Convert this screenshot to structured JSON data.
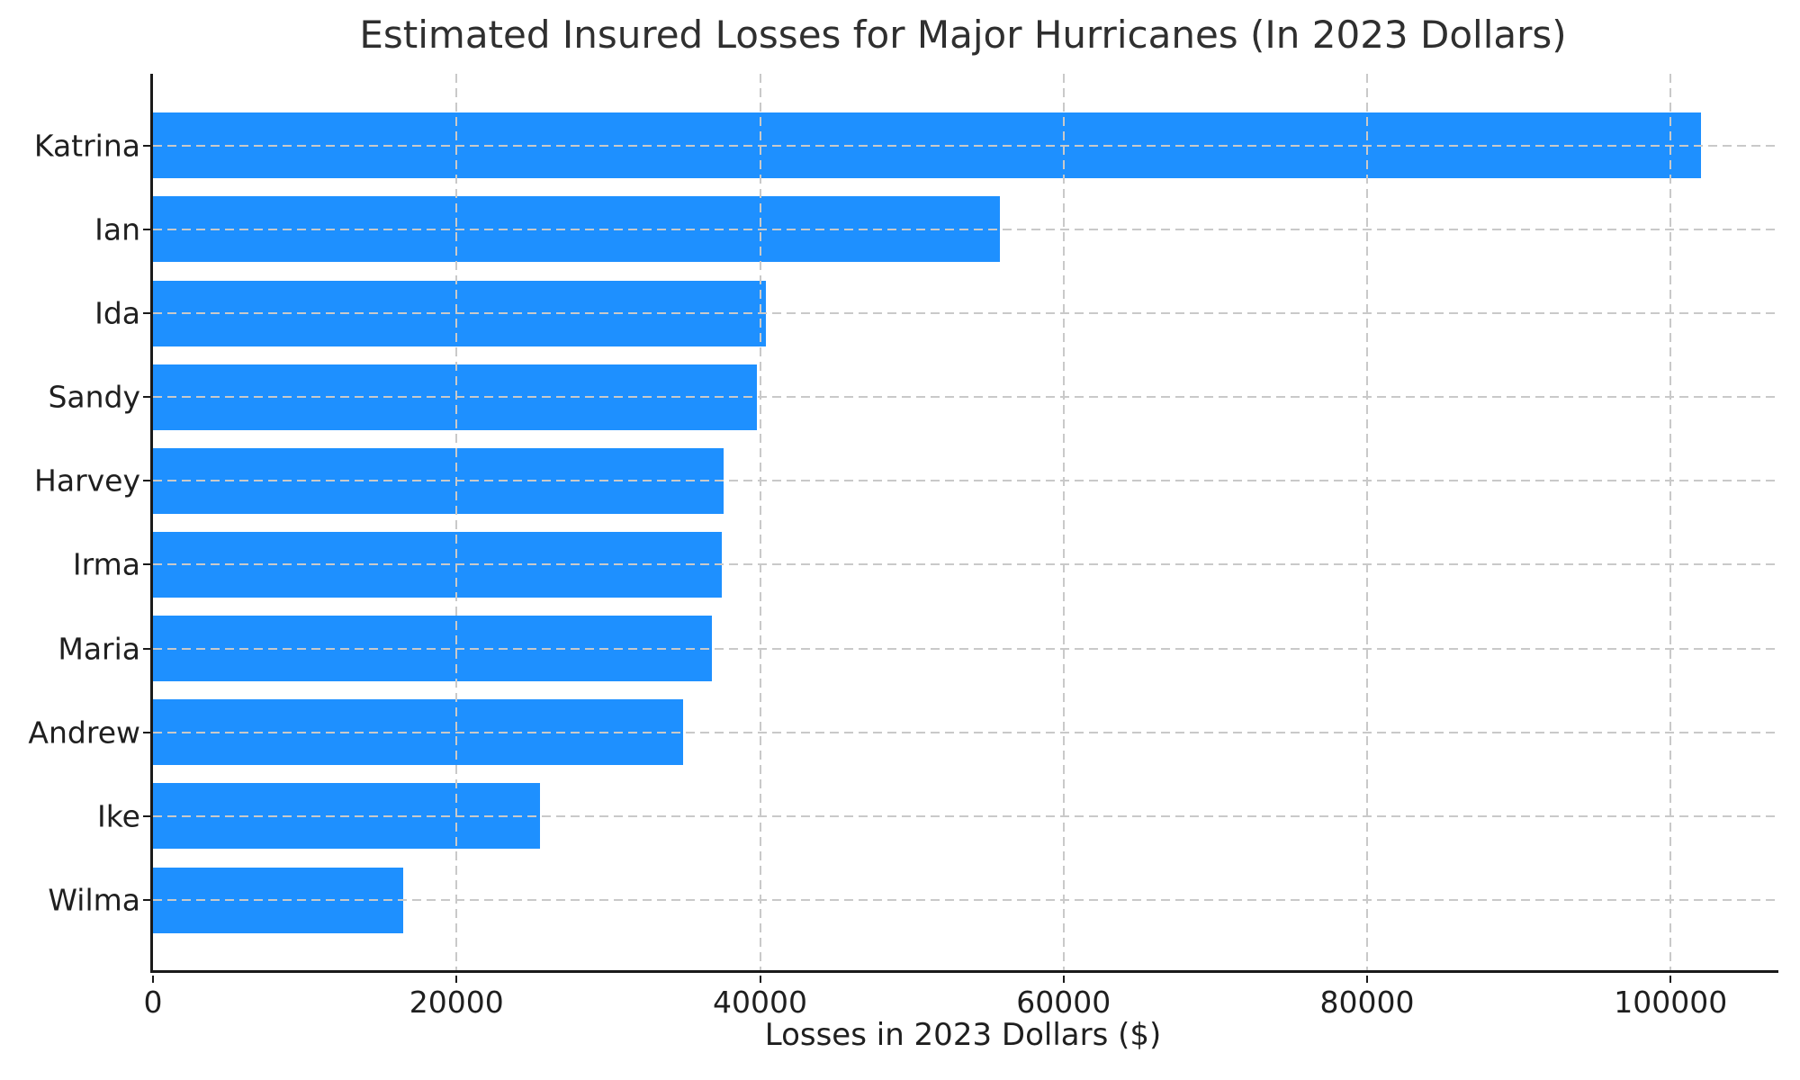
{
  "chart_data": {
    "type": "bar",
    "orientation": "horizontal",
    "title": "Estimated Insured Losses for Major Hurricanes (In 2023 Dollars)",
    "xlabel": "Losses in 2023 Dollars ($)",
    "categories": [
      "Katrina",
      "Ian",
      "Ida",
      "Sandy",
      "Harvey",
      "Irma",
      "Maria",
      "Andrew",
      "Ike",
      "Wilma"
    ],
    "values": [
      102000,
      55800,
      40400,
      39800,
      37600,
      37500,
      36800,
      34900,
      25500,
      16500
    ],
    "xticks": [
      0,
      20000,
      40000,
      60000,
      80000,
      100000
    ],
    "xlim": [
      0,
      107100
    ],
    "grid": true,
    "grid_style": "dashed",
    "legend": false,
    "bar_color": "#1E90FF",
    "grid_color": "#c9c9c9",
    "axis_color": "#1a1a1a",
    "text_color": "#1f1f1f",
    "background_color": "#ffffff"
  }
}
